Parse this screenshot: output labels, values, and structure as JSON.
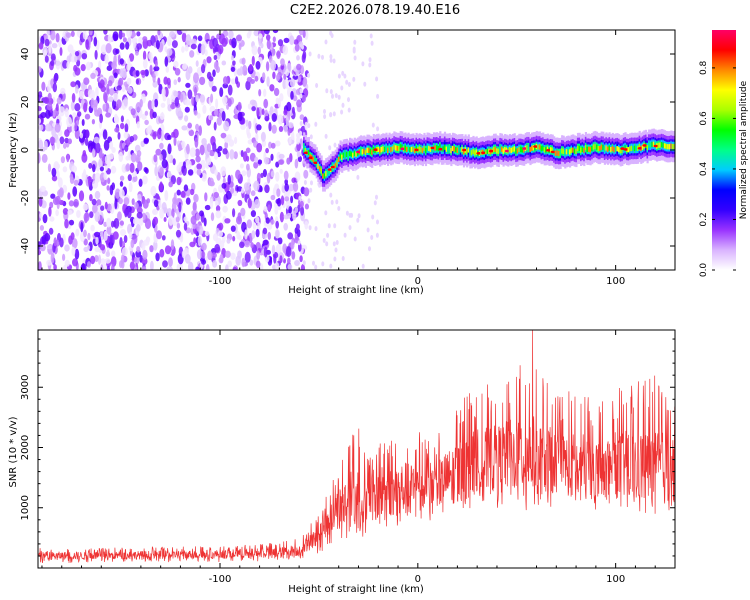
{
  "title": "C2E2.2026.078.19.40.E16",
  "chart_data": [
    {
      "type": "heatmap",
      "xlabel": "Height of straight line (km)",
      "ylabel": "Frequency (Hz)",
      "xlim": [
        -192,
        130
      ],
      "ylim": [
        -50,
        50
      ],
      "xticks": [
        -100,
        0,
        100
      ],
      "yticks": [
        -40,
        -20,
        0,
        20,
        40
      ],
      "noise_region_x": [
        -192,
        -60
      ],
      "signal_track": {
        "x": [
          -58,
          -55,
          -52,
          -50,
          -48,
          -45,
          -42,
          -40,
          -35,
          -30,
          -20,
          -10,
          0,
          10,
          20,
          30,
          40,
          50,
          60,
          70,
          80,
          90,
          100,
          110,
          120,
          130
        ],
        "frequency": [
          1,
          -2,
          -5,
          -8,
          -11,
          -9,
          -6,
          -3,
          -2,
          -1,
          0,
          1,
          0,
          1,
          0,
          -1,
          0,
          0,
          1,
          -1,
          0,
          1,
          0,
          1,
          2,
          1
        ]
      },
      "colorbar": {
        "label": "Normalized spectral amplitude",
        "range": [
          0,
          0.95
        ],
        "ticks": [
          "0.0",
          "0.2",
          "0.4",
          "0.6",
          "0.8"
        ],
        "colors": [
          "#ffffff",
          "#d9b3ff",
          "#9933ff",
          "#3300ff",
          "#0000ff",
          "#00ccff",
          "#00ff88",
          "#00ff00",
          "#aaff00",
          "#ffff00",
          "#ff8800",
          "#ff0000",
          "#ff0066"
        ]
      }
    },
    {
      "type": "line",
      "xlabel": "Height of straight line (km)",
      "ylabel": "SNR (10 * v/v)",
      "xlim": [
        -192,
        130
      ],
      "ylim": [
        0,
        3950
      ],
      "xticks": [
        -100,
        0,
        100
      ],
      "yticks": [
        1000,
        2000,
        3000
      ],
      "series": [
        {
          "name": "SNR",
          "color": "#ee3333",
          "envelope": {
            "x": [
              -192,
              -150,
              -100,
              -70,
              -60,
              -50,
              -45,
              -40,
              -35,
              -30,
              -25,
              -20,
              -15,
              -10,
              0,
              10,
              20,
              30,
              40,
              50,
              55,
              60,
              70,
              80,
              90,
              100,
              110,
              120,
              130
            ],
            "low": [
              80,
              90,
              100,
              120,
              150,
              250,
              350,
              450,
              400,
              500,
              550,
              600,
              650,
              700,
              750,
              800,
              900,
              950,
              1000,
              1000,
              900,
              950,
              1000,
              950,
              900,
              950,
              900,
              850,
              900
            ],
            "high": [
              330,
              340,
              370,
              420,
              520,
              900,
              1300,
              1700,
              2200,
              2500,
              1800,
              2300,
              2100,
              2400,
              2300,
              2200,
              2800,
              3000,
              3100,
              3300,
              3500,
              3300,
              2900,
              3000,
              2800,
              3000,
              3100,
              3200,
              3000
            ],
            "mean": [
              200,
              210,
              230,
              260,
              300,
              550,
              800,
              1000,
              1100,
              1150,
              1200,
              1250,
              1250,
              1300,
              1350,
              1400,
              1600,
              1750,
              1800,
              1900,
              1900,
              1850,
              1750,
              1700,
              1650,
              1700,
              1700,
              1650,
              1650
            ]
          },
          "peak": {
            "x": 58,
            "value": 3950
          }
        }
      ]
    }
  ]
}
